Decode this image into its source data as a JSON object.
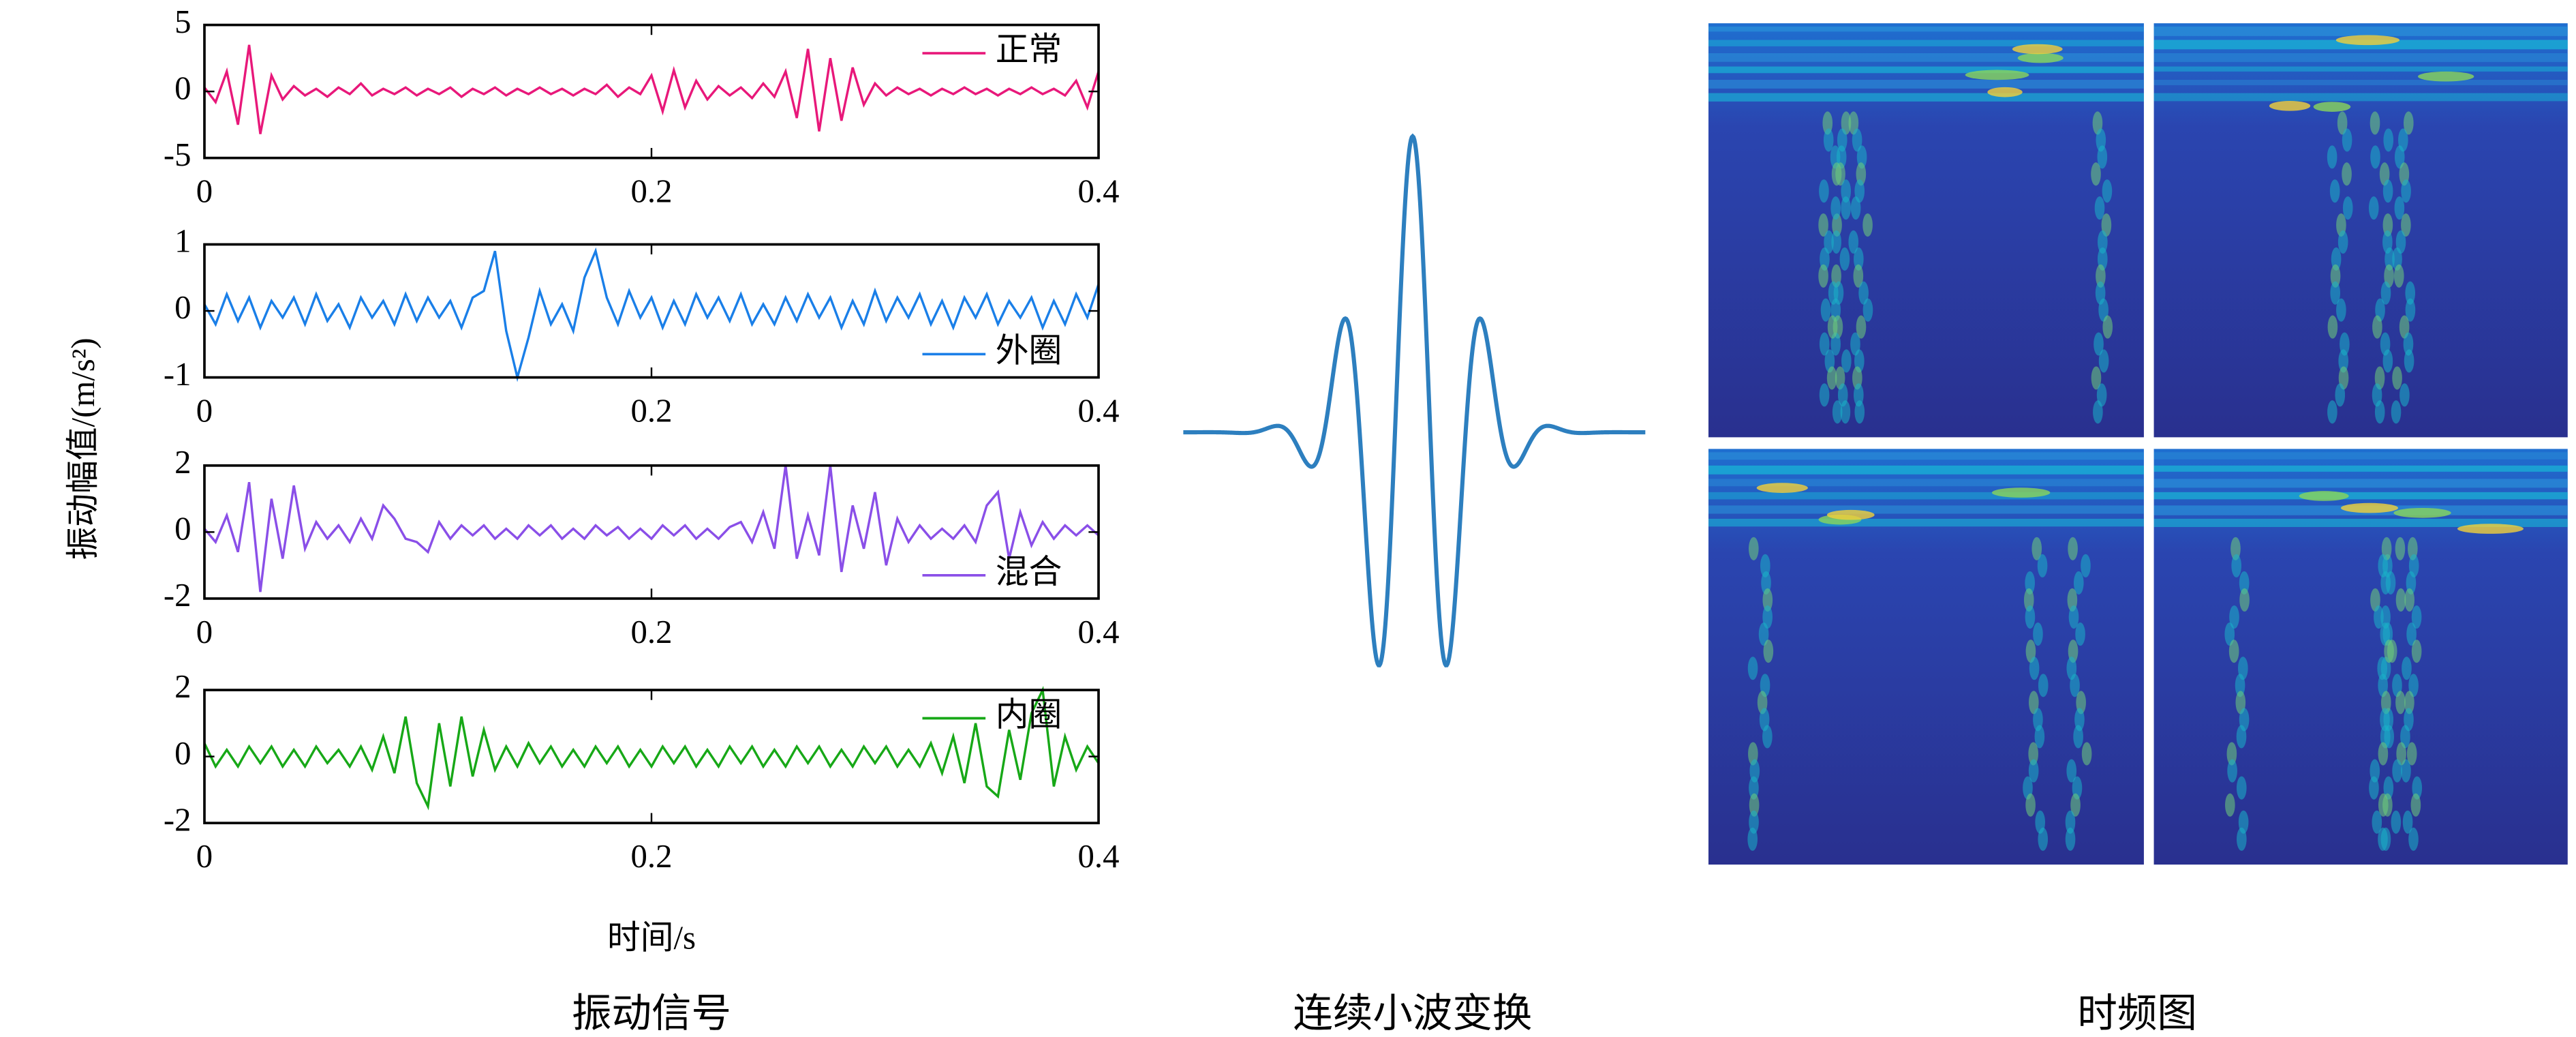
{
  "figure": {
    "y_label": "振动幅值/(m/s²)",
    "x_label": "时间/s",
    "captions": [
      "振动信号",
      "连续小波变换",
      "时频图"
    ]
  },
  "chart_data": [
    {
      "type": "line",
      "legend": "upper right",
      "x": [
        0,
        0.005,
        0.01,
        0.015,
        0.02,
        0.025,
        0.03,
        0.035,
        0.04,
        0.045,
        0.05,
        0.055,
        0.06,
        0.065,
        0.07,
        0.075,
        0.08,
        0.085,
        0.09,
        0.095,
        0.1,
        0.105,
        0.11,
        0.115,
        0.12,
        0.125,
        0.13,
        0.135,
        0.14,
        0.145,
        0.15,
        0.155,
        0.16,
        0.165,
        0.17,
        0.175,
        0.18,
        0.185,
        0.19,
        0.195,
        0.2,
        0.205,
        0.21,
        0.215,
        0.22,
        0.225,
        0.23,
        0.235,
        0.24,
        0.245,
        0.25,
        0.255,
        0.26,
        0.265,
        0.27,
        0.275,
        0.28,
        0.285,
        0.29,
        0.295,
        0.3,
        0.305,
        0.31,
        0.315,
        0.32,
        0.325,
        0.33,
        0.335,
        0.34,
        0.345,
        0.35,
        0.355,
        0.36,
        0.365,
        0.37,
        0.375,
        0.38,
        0.385,
        0.39,
        0.395,
        0.4
      ],
      "series": [
        {
          "name": "正常",
          "color": "#e8187a",
          "values": [
            0.3,
            -0.8,
            1.5,
            -2.5,
            3.5,
            -3.2,
            1.2,
            -0.6,
            0.4,
            -0.3,
            0.2,
            -0.4,
            0.3,
            -0.2,
            0.6,
            -0.3,
            0.2,
            -0.2,
            0.3,
            -0.3,
            0.2,
            -0.2,
            0.3,
            -0.4,
            0.2,
            -0.2,
            0.3,
            -0.3,
            0.2,
            -0.2,
            0.3,
            -0.2,
            0.2,
            -0.3,
            0.2,
            -0.2,
            0.5,
            -0.4,
            0.3,
            -0.2,
            1.2,
            -1.5,
            1.6,
            -1.2,
            0.8,
            -0.6,
            0.4,
            -0.3,
            0.3,
            -0.5,
            0.6,
            -0.4,
            1.5,
            -2.0,
            3.2,
            -3.0,
            2.5,
            -2.2,
            1.8,
            -1.0,
            0.6,
            -0.3,
            0.3,
            -0.2,
            0.2,
            -0.3,
            0.2,
            -0.2,
            0.3,
            -0.2,
            0.2,
            -0.3,
            0.2,
            -0.2,
            0.3,
            -0.2,
            0.2,
            -0.3,
            0.8,
            -1.2,
            1.5
          ]
        }
      ],
      "xlim": [
        0,
        0.4
      ],
      "ylim": [
        -5,
        5
      ],
      "xticks": [
        0,
        0.2,
        0.4
      ],
      "yticks": [
        -5,
        0,
        5
      ]
    },
    {
      "type": "line",
      "legend": "lower right",
      "x": [
        0,
        0.005,
        0.01,
        0.015,
        0.02,
        0.025,
        0.03,
        0.035,
        0.04,
        0.045,
        0.05,
        0.055,
        0.06,
        0.065,
        0.07,
        0.075,
        0.08,
        0.085,
        0.09,
        0.095,
        0.1,
        0.105,
        0.11,
        0.115,
        0.12,
        0.125,
        0.13,
        0.135,
        0.14,
        0.145,
        0.15,
        0.155,
        0.16,
        0.165,
        0.17,
        0.175,
        0.18,
        0.185,
        0.19,
        0.195,
        0.2,
        0.205,
        0.21,
        0.215,
        0.22,
        0.225,
        0.23,
        0.235,
        0.24,
        0.245,
        0.25,
        0.255,
        0.26,
        0.265,
        0.27,
        0.275,
        0.28,
        0.285,
        0.29,
        0.295,
        0.3,
        0.305,
        0.31,
        0.315,
        0.32,
        0.325,
        0.33,
        0.335,
        0.34,
        0.345,
        0.35,
        0.355,
        0.36,
        0.365,
        0.37,
        0.375,
        0.38,
        0.385,
        0.39,
        0.395,
        0.4
      ],
      "series": [
        {
          "name": "外圈",
          "color": "#1a7fe8",
          "values": [
            0.1,
            -0.2,
            0.25,
            -0.15,
            0.2,
            -0.25,
            0.15,
            -0.1,
            0.2,
            -0.2,
            0.25,
            -0.15,
            0.1,
            -0.25,
            0.2,
            -0.1,
            0.15,
            -0.2,
            0.25,
            -0.15,
            0.2,
            -0.1,
            0.15,
            -0.25,
            0.2,
            0.3,
            0.9,
            -0.3,
            -1.0,
            -0.4,
            0.3,
            -0.2,
            0.1,
            -0.3,
            0.5,
            0.9,
            0.2,
            -0.2,
            0.3,
            -0.1,
            0.2,
            -0.25,
            0.15,
            -0.2,
            0.25,
            -0.1,
            0.2,
            -0.15,
            0.25,
            -0.2,
            0.1,
            -0.2,
            0.2,
            -0.15,
            0.25,
            -0.1,
            0.2,
            -0.25,
            0.15,
            -0.2,
            0.3,
            -0.15,
            0.2,
            -0.1,
            0.25,
            -0.2,
            0.15,
            -0.25,
            0.2,
            -0.1,
            0.25,
            -0.2,
            0.15,
            -0.1,
            0.2,
            -0.25,
            0.15,
            -0.2,
            0.25,
            -0.1,
            0.4
          ]
        }
      ],
      "xlim": [
        0,
        0.4
      ],
      "ylim": [
        -1,
        1
      ],
      "xticks": [
        0,
        0.2,
        0.4
      ],
      "yticks": [
        -1,
        0,
        1
      ]
    },
    {
      "type": "line",
      "legend": "lower right",
      "x": [
        0,
        0.005,
        0.01,
        0.015,
        0.02,
        0.025,
        0.03,
        0.035,
        0.04,
        0.045,
        0.05,
        0.055,
        0.06,
        0.065,
        0.07,
        0.075,
        0.08,
        0.085,
        0.09,
        0.095,
        0.1,
        0.105,
        0.11,
        0.115,
        0.12,
        0.125,
        0.13,
        0.135,
        0.14,
        0.145,
        0.15,
        0.155,
        0.16,
        0.165,
        0.17,
        0.175,
        0.18,
        0.185,
        0.19,
        0.195,
        0.2,
        0.205,
        0.21,
        0.215,
        0.22,
        0.225,
        0.23,
        0.235,
        0.24,
        0.245,
        0.25,
        0.255,
        0.26,
        0.265,
        0.27,
        0.275,
        0.28,
        0.285,
        0.29,
        0.295,
        0.3,
        0.305,
        0.31,
        0.315,
        0.32,
        0.325,
        0.33,
        0.335,
        0.34,
        0.345,
        0.35,
        0.355,
        0.36,
        0.365,
        0.37,
        0.375,
        0.38,
        0.385,
        0.39,
        0.395,
        0.4
      ],
      "series": [
        {
          "name": "混合",
          "color": "#8a4fe8",
          "values": [
            0.1,
            -0.3,
            0.5,
            -0.6,
            1.5,
            -1.8,
            1.0,
            -0.8,
            1.4,
            -0.5,
            0.3,
            -0.2,
            0.2,
            -0.3,
            0.4,
            -0.2,
            0.8,
            0.4,
            -0.2,
            -0.3,
            -0.6,
            0.3,
            -0.2,
            0.2,
            -0.1,
            0.2,
            -0.2,
            0.1,
            -0.2,
            0.2,
            -0.1,
            0.2,
            -0.2,
            0.1,
            -0.2,
            0.2,
            -0.1,
            0.15,
            -0.2,
            0.1,
            -0.2,
            0.2,
            -0.1,
            0.2,
            -0.2,
            0.1,
            -0.2,
            0.15,
            0.3,
            -0.3,
            0.6,
            -0.5,
            2.0,
            -0.8,
            0.5,
            -0.7,
            2.0,
            -1.2,
            0.8,
            -0.5,
            1.2,
            -1.0,
            0.4,
            -0.3,
            0.2,
            -0.2,
            0.1,
            -0.2,
            0.2,
            -0.3,
            0.8,
            1.2,
            -0.8,
            0.6,
            -0.4,
            0.3,
            -0.2,
            0.2,
            -0.1,
            0.2,
            -0.1
          ]
        }
      ],
      "xlim": [
        0,
        0.4
      ],
      "ylim": [
        -2,
        2
      ],
      "xticks": [
        0,
        0.2,
        0.4
      ],
      "yticks": [
        -2,
        0,
        2
      ]
    },
    {
      "type": "line",
      "legend": "upper right",
      "x": [
        0,
        0.005,
        0.01,
        0.015,
        0.02,
        0.025,
        0.03,
        0.035,
        0.04,
        0.045,
        0.05,
        0.055,
        0.06,
        0.065,
        0.07,
        0.075,
        0.08,
        0.085,
        0.09,
        0.095,
        0.1,
        0.105,
        0.11,
        0.115,
        0.12,
        0.125,
        0.13,
        0.135,
        0.14,
        0.145,
        0.15,
        0.155,
        0.16,
        0.165,
        0.17,
        0.175,
        0.18,
        0.185,
        0.19,
        0.195,
        0.2,
        0.205,
        0.21,
        0.215,
        0.22,
        0.225,
        0.23,
        0.235,
        0.24,
        0.245,
        0.25,
        0.255,
        0.26,
        0.265,
        0.27,
        0.275,
        0.28,
        0.285,
        0.29,
        0.295,
        0.3,
        0.305,
        0.31,
        0.315,
        0.32,
        0.325,
        0.33,
        0.335,
        0.34,
        0.345,
        0.35,
        0.355,
        0.36,
        0.365,
        0.37,
        0.375,
        0.38,
        0.385,
        0.39,
        0.395,
        0.4
      ],
      "series": [
        {
          "name": "内圈",
          "color": "#17a817",
          "values": [
            0.4,
            -0.3,
            0.2,
            -0.3,
            0.3,
            -0.2,
            0.3,
            -0.3,
            0.2,
            -0.3,
            0.3,
            -0.2,
            0.2,
            -0.3,
            0.3,
            -0.4,
            0.6,
            -0.5,
            1.2,
            -0.8,
            -1.5,
            1.0,
            -0.9,
            1.2,
            -0.6,
            0.8,
            -0.4,
            0.3,
            -0.3,
            0.4,
            -0.2,
            0.3,
            -0.3,
            0.2,
            -0.3,
            0.3,
            -0.2,
            0.3,
            -0.3,
            0.2,
            -0.3,
            0.3,
            -0.2,
            0.3,
            -0.3,
            0.2,
            -0.3,
            0.3,
            -0.2,
            0.3,
            -0.3,
            0.2,
            -0.3,
            0.3,
            -0.2,
            0.3,
            -0.3,
            0.2,
            -0.3,
            0.3,
            -0.2,
            0.3,
            -0.3,
            0.2,
            -0.3,
            0.4,
            -0.5,
            0.6,
            -0.8,
            1.0,
            -0.9,
            -1.2,
            0.8,
            -0.7,
            1.3,
            2.0,
            -0.9,
            0.6,
            -0.4,
            0.3,
            -0.2
          ]
        }
      ],
      "xlim": [
        0,
        0.4
      ],
      "ylim": [
        -2,
        2
      ],
      "xticks": [
        0,
        0.2,
        0.4
      ],
      "yticks": [
        -2,
        0,
        2
      ]
    }
  ]
}
